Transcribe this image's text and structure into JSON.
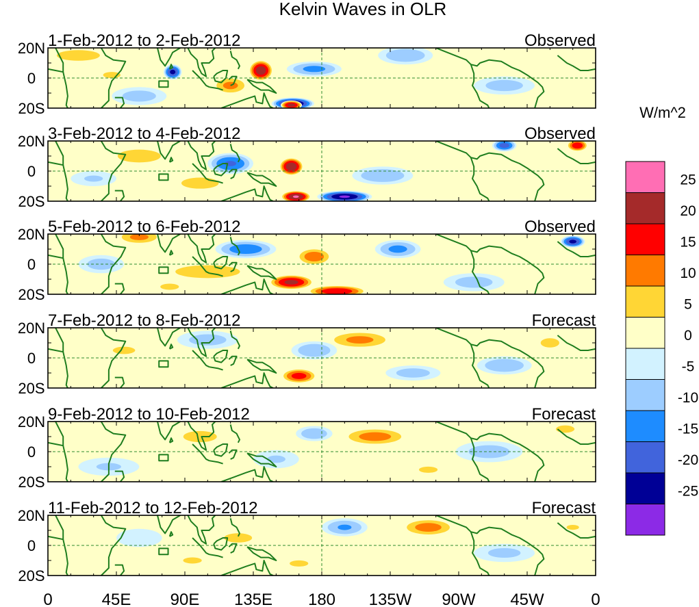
{
  "chart_data": {
    "type": "heatmap",
    "title": "Kelvin Waves in OLR",
    "colorbar": {
      "unit_label": "W/m^2",
      "tick_labels": [
        "25",
        "20",
        "15",
        "10",
        "5",
        "0",
        "-5",
        "-10",
        "-15",
        "-20",
        "-25"
      ],
      "colors": [
        "#ff6eb4",
        "#a52a2a",
        "#ff0000",
        "#ff7a00",
        "#ffd635",
        "#ffffc8",
        "#d2f2ff",
        "#9dcdff",
        "#1e8cff",
        "#4164dc",
        "#000096",
        "#8c2ae6"
      ]
    },
    "x_ticks": [
      "0",
      "45E",
      "90E",
      "135E",
      "180",
      "135W",
      "90W",
      "45W",
      "0"
    ],
    "y_ticks": [
      "20N",
      "0",
      "20S"
    ],
    "panels": [
      {
        "date_range": "1-Feb-2012 to 2-Feb-2012",
        "status": "Observed",
        "features": [
          [
            140,
            5,
            8,
            7,
            24
          ],
          [
            161,
            -17,
            14,
            4,
            -27
          ],
          [
            82,
            4,
            6,
            5,
            -22
          ],
          [
            160,
            -18,
            7,
            3,
            23
          ],
          [
            20,
            15,
            20,
            5,
            10
          ],
          [
            120,
            -5,
            12,
            6,
            12
          ],
          [
            175,
            6,
            18,
            5,
            -12
          ],
          [
            60,
            -12,
            18,
            6,
            -8
          ],
          [
            235,
            15,
            18,
            6,
            -10
          ],
          [
            300,
            -5,
            20,
            6,
            -8
          ],
          [
            42,
            2,
            14,
            5,
            6
          ]
        ]
      },
      {
        "date_range": "3-Feb-2012 to 4-Feb-2012",
        "status": "Observed",
        "features": [
          [
            160,
            3,
            8,
            6,
            25
          ],
          [
            163,
            -17,
            10,
            4,
            26
          ],
          [
            195,
            -17,
            18,
            4,
            -26
          ],
          [
            300,
            17,
            8,
            4,
            -18
          ],
          [
            348,
            17,
            7,
            4,
            20
          ],
          [
            120,
            5,
            15,
            7,
            -16
          ],
          [
            60,
            10,
            20,
            6,
            10
          ],
          [
            100,
            -8,
            20,
            6,
            8
          ],
          [
            220,
            -3,
            20,
            6,
            -10
          ],
          [
            30,
            -5,
            15,
            5,
            -6
          ]
        ]
      },
      {
        "date_range": "5-Feb-2012 to 6-Feb-2012",
        "status": "Observed",
        "features": [
          [
            160,
            -12,
            15,
            5,
            22
          ],
          [
            175,
            5,
            12,
            6,
            14
          ],
          [
            190,
            -18,
            20,
            4,
            20
          ],
          [
            345,
            15,
            8,
            4,
            -22
          ],
          [
            105,
            -5,
            30,
            6,
            10
          ],
          [
            130,
            10,
            20,
            6,
            -14
          ],
          [
            60,
            18,
            15,
            5,
            12
          ],
          [
            230,
            10,
            15,
            6,
            -12
          ],
          [
            35,
            0,
            15,
            6,
            -8
          ],
          [
            280,
            -12,
            20,
            6,
            -8
          ],
          [
            80,
            -15,
            15,
            5,
            6
          ]
        ]
      },
      {
        "date_range": "7-Feb-2012 to 8-Feb-2012",
        "status": "Forecast",
        "features": [
          [
            165,
            -12,
            12,
            5,
            18
          ],
          [
            205,
            12,
            22,
            6,
            12
          ],
          [
            175,
            5,
            15,
            6,
            -10
          ],
          [
            105,
            12,
            20,
            6,
            -8
          ],
          [
            300,
            -5,
            18,
            6,
            -10
          ],
          [
            240,
            -10,
            18,
            5,
            -8
          ],
          [
            50,
            5,
            18,
            6,
            6
          ],
          [
            330,
            10,
            10,
            5,
            8
          ]
        ]
      },
      {
        "date_range": "9-Feb-2012 to 10-Feb-2012",
        "status": "Forecast",
        "features": [
          [
            215,
            10,
            22,
            6,
            13
          ],
          [
            175,
            12,
            12,
            5,
            -10
          ],
          [
            100,
            10,
            18,
            6,
            8
          ],
          [
            150,
            -5,
            15,
            6,
            -6
          ],
          [
            290,
            0,
            22,
            7,
            -8
          ],
          [
            40,
            -10,
            20,
            6,
            -6
          ],
          [
            340,
            15,
            10,
            4,
            8
          ],
          [
            250,
            -12,
            15,
            5,
            6
          ]
        ]
      },
      {
        "date_range": "11-Feb-2012 to 12-Feb-2012",
        "status": "Forecast",
        "features": [
          [
            250,
            12,
            18,
            6,
            13
          ],
          [
            195,
            12,
            15,
            6,
            -11
          ],
          [
            125,
            5,
            15,
            5,
            8
          ],
          [
            95,
            -10,
            15,
            5,
            6
          ],
          [
            300,
            -5,
            20,
            6,
            -7
          ],
          [
            60,
            5,
            15,
            6,
            -5
          ],
          [
            345,
            12,
            10,
            4,
            6
          ],
          [
            165,
            -12,
            15,
            5,
            6
          ]
        ]
      }
    ]
  }
}
